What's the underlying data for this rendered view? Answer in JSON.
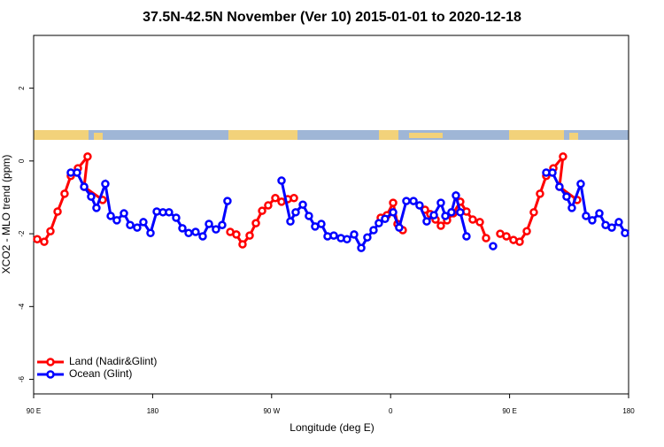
{
  "chart_data": {
    "type": "line",
    "title": "37.5N-42.5N November (Ver 10)   2015-01-01 to 2020-12-18",
    "xlabel": "Longitude (deg E)",
    "ylabel": "XCO2 - MLO trend (ppm)",
    "xlim": [
      90,
      540
    ],
    "ylim": [
      -6.4,
      3.45
    ],
    "xticks": [
      {
        "value": 90,
        "label": "90 E"
      },
      180,
      {
        "value": 270,
        "label": "90 W"
      },
      {
        "value": 360,
        "label": "0"
      },
      {
        "value": 450,
        "label": "90 E"
      },
      {
        "value": 540,
        "label": "180"
      }
    ],
    "yticks": [
      -6,
      -4,
      -2,
      0,
      2
    ],
    "legend": "bottom-left",
    "series": [
      {
        "name": "Land (Nadir&Glint)",
        "color": "#ff0000",
        "x": [
          92.7,
          98.0,
          102.7,
          108.1,
          113.4,
          118.1,
          123.5,
          130.8,
          128.2,
          142.2,
          null,
          238.7,
          243.3,
          248.0,
          253.4,
          258.1,
          262.8,
          267.4,
          272.8,
          277.5,
          282.2,
          286.9,
          null,
          352.5,
          357.2,
          361.9,
          365.2,
          369.2,
          null,
          386.0,
          390.0,
          394.0,
          398.0,
          402.7,
          407.4,
          412.7,
          417.4,
          422.1,
          427.5,
          432.2,
          null,
          442.9,
          447.6,
          452.9,
          457.6,
          463.0,
          468.3,
          473.0,
          477.7,
          483.1,
          490.4,
          487.7,
          501.1
        ],
        "values": [
          -2.15,
          -2.22,
          -1.93,
          -1.39,
          -0.9,
          -0.41,
          -0.2,
          0.12,
          -0.71,
          -1.07,
          null,
          -1.95,
          -2.02,
          -2.29,
          -2.05,
          -1.71,
          -1.37,
          -1.22,
          -1.02,
          -1.12,
          -1.05,
          -1.02,
          null,
          -1.56,
          -1.49,
          -1.15,
          -1.73,
          -1.9,
          null,
          -1.34,
          -1.46,
          -1.61,
          -1.78,
          -1.63,
          -1.44,
          -1.12,
          -1.39,
          -1.61,
          -1.68,
          -2.12,
          null,
          -2.0,
          -2.07,
          -2.17,
          -2.22,
          -1.93,
          -1.41,
          -0.9,
          -0.41,
          -0.2,
          0.12,
          -0.71,
          -1.07
        ]
      },
      {
        "name": "Ocean (Glint)",
        "color": "#0000ff",
        "x": [
          118.1,
          122.8,
          128.2,
          133.5,
          137.5,
          144.2,
          148.3,
          152.9,
          158.3,
          163.0,
          168.3,
          173.0,
          178.4,
          183.1,
          187.8,
          192.4,
          197.8,
          202.5,
          207.2,
          212.5,
          217.9,
          222.6,
          227.9,
          232.6,
          236.6,
          null,
          277.5,
          284.2,
          288.2,
          293.6,
          298.2,
          302.9,
          307.6,
          312.3,
          317.0,
          322.4,
          327.0,
          332.4,
          337.8,
          342.4,
          347.1,
          351.1,
          355.8,
          361.9,
          366.5,
          371.9,
          377.3,
          381.9,
          387.3,
          392.7,
          398.0,
          401.4,
          406.0,
          409.4,
          412.7,
          417.4,
          null,
          437.5,
          null,
          477.7,
          482.4,
          487.7,
          493.1,
          497.1,
          503.8,
          507.8,
          512.5,
          517.9,
          522.6,
          527.3,
          532.6,
          537.3
        ],
        "values": [
          -0.32,
          -0.32,
          -0.71,
          -0.98,
          -1.29,
          -0.63,
          -1.51,
          -1.63,
          -1.44,
          -1.76,
          -1.83,
          -1.68,
          -1.98,
          -1.39,
          -1.41,
          -1.41,
          -1.56,
          -1.85,
          -1.98,
          -1.95,
          -2.07,
          -1.73,
          -1.88,
          -1.76,
          -1.1,
          null,
          -0.54,
          -1.66,
          -1.41,
          -1.2,
          -1.51,
          -1.8,
          -1.73,
          -2.07,
          -2.05,
          -2.12,
          -2.15,
          -2.02,
          -2.39,
          -2.1,
          -1.9,
          -1.71,
          -1.59,
          -1.41,
          -1.83,
          -1.1,
          -1.1,
          -1.22,
          -1.66,
          -1.49,
          -1.15,
          -1.51,
          -1.41,
          -0.95,
          -1.41,
          -2.07,
          null,
          -2.34,
          null,
          -0.32,
          -0.32,
          -0.71,
          -0.98,
          -1.29,
          -0.63,
          -1.51,
          -1.63,
          -1.44,
          -1.76,
          -1.83,
          -1.68,
          -1.98
        ]
      }
    ]
  }
}
